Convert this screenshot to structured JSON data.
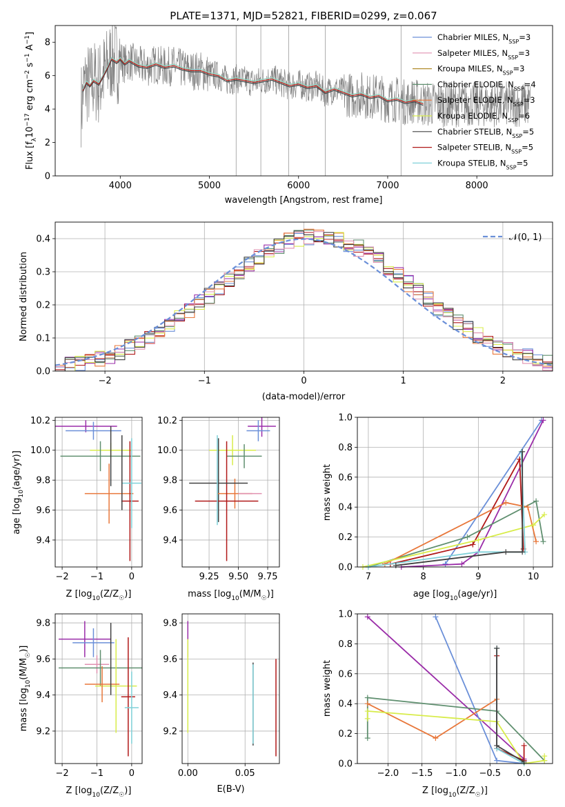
{
  "colors": {
    "Chabrier MILES": "#6a8fd8",
    "Salpeter MILES": "#e090b0",
    "Kroupa MILES": "#b08a2a",
    "Chabrier ELODIE": "#5f8f6f",
    "Salpeter ELODIE": "#e8773a",
    "Kroupa ELODIE": "#d8ec4a",
    "Chabrier STELIB": "#404040",
    "Salpeter STELIB": "#b01818",
    "Kroupa STELIB": "#7fd0d8",
    "Kroupa MILES alt": "#9a2ca8",
    "data": "#808080",
    "normal": "#6a8fd8"
  },
  "chart_data": [
    {
      "id": "spectrum",
      "type": "line",
      "title": "PLATE=1371, MJD=52821, FIBERID=0299, z=0.067",
      "xlabel": "wavelength [Angstrom, rest frame]",
      "ylabel_parts": [
        "Flux [f",
        "λ",
        "10",
        "−17",
        " erg cm",
        "−2",
        " s",
        "−1",
        " A",
        "−1",
        "]"
      ],
      "xlim": [
        3270,
        8850
      ],
      "ylim": [
        0,
        9
      ],
      "xticks": [
        "4000",
        "5000",
        "6000",
        "7000",
        "8000"
      ],
      "yticks": [
        "0",
        "2",
        "4",
        "6",
        "8"
      ],
      "legend": [
        {
          "base": "Chabrier MILES, N",
          "sub": "SSP",
          "tail": "=3"
        },
        {
          "base": "Salpeter MILES, N",
          "sub": "SSP",
          "tail": "=3"
        },
        {
          "base": "Kroupa MILES, N",
          "sub": "SSP",
          "tail": "=3"
        },
        {
          "base": "Chabrier ELODIE, N",
          "sub": "SSP",
          "tail": "=4"
        },
        {
          "base": "Salpeter ELODIE, N",
          "sub": "SSP",
          "tail": "=3"
        },
        {
          "base": "Kroupa ELODIE, N",
          "sub": "SSP",
          "tail": "=6"
        },
        {
          "base": "Chabrier STELIB, N",
          "sub": "SSP",
          "tail": "=5"
        },
        {
          "base": "Salpeter STELIB, N",
          "sub": "SSP",
          "tail": "=5"
        },
        {
          "base": "Kroupa STELIB, N",
          "sub": "SSP",
          "tail": "=5"
        }
      ],
      "model_curve": {
        "x": [
          3580,
          3620,
          3660,
          3700,
          3760,
          3800,
          3860,
          3900,
          3960,
          4000,
          4050,
          4100,
          4200,
          4300,
          4400,
          4500,
          4600,
          4700,
          4800,
          4900,
          5000,
          5100,
          5200,
          5300,
          5400,
          5500,
          5600,
          5700,
          5800,
          5900,
          6000,
          6100,
          6200,
          6300,
          6400,
          6500,
          6600,
          6700,
          6800,
          6900,
          7000,
          7100,
          7200,
          7300,
          7400
        ],
        "y": [
          5.1,
          5.6,
          5.4,
          5.7,
          5.5,
          5.9,
          6.5,
          7.0,
          6.8,
          7.0,
          6.7,
          6.9,
          6.6,
          6.5,
          6.7,
          6.5,
          6.6,
          6.4,
          6.3,
          6.3,
          6.1,
          6.0,
          5.7,
          5.8,
          5.7,
          5.6,
          5.7,
          5.8,
          5.6,
          5.4,
          5.5,
          5.3,
          5.4,
          5.0,
          5.2,
          5.0,
          4.8,
          4.9,
          4.7,
          4.8,
          4.5,
          4.6,
          4.4,
          4.5,
          4.3
        ]
      }
    },
    {
      "id": "residuals",
      "type": "histogram",
      "xlabel": "(data-model)/error",
      "ylabel": "Normed distribution",
      "xlim": [
        -2.5,
        2.5
      ],
      "ylim": [
        0,
        0.45
      ],
      "xticks": [
        "−2",
        "−1",
        "0",
        "1",
        "2"
      ],
      "yticks": [
        "0.0",
        "0.1",
        "0.2",
        "0.3",
        "0.4"
      ],
      "legend": "𝒩(0, 1)",
      "bin_width": 0.1
    },
    {
      "id": "age_vs_Z",
      "type": "errorbar",
      "ylabel": "age  [log10(age/yr)]",
      "ylabel_parts": [
        "age  [log",
        "10",
        "(age/yr)]"
      ],
      "xlabel_parts": [
        "Z [log",
        "10",
        "(Z/Z",
        "☉",
        ")]"
      ],
      "xlim": [
        -2.2,
        0.3
      ],
      "ylim": [
        9.22,
        10.22
      ],
      "xticks": [
        "−2",
        "−1",
        "0"
      ],
      "yticks": [
        "9.4",
        "9.6",
        "9.8",
        "10.0",
        "10.2"
      ],
      "points": [
        {
          "m": "Kroupa MILES alt",
          "x": -1.32,
          "xe": 0.9,
          "y": 10.16,
          "ye": 0.04
        },
        {
          "m": "Chabrier MILES",
          "x": -1.1,
          "xe": 0.8,
          "y": 10.13,
          "ye": 0.06
        },
        {
          "m": "Kroupa ELODIE",
          "x": -0.6,
          "xe": 0.6,
          "y": 10.0,
          "ye": 0.05
        },
        {
          "m": "Chabrier ELODIE",
          "x": -0.9,
          "xe": 1.15,
          "y": 9.96,
          "ye": 0.1
        },
        {
          "m": "Chabrier STELIB",
          "x": -0.6,
          "xe": 0.0,
          "y": 9.96,
          "ye": 0.2
        },
        {
          "m": "Salpeter ELODIE",
          "x": -0.65,
          "xe": 0.7,
          "y": 9.71,
          "ye": 0.2
        },
        {
          "m": "Salpeter STELIB",
          "x": -0.05,
          "xe": 0.25,
          "y": 9.66,
          "ye": 0.4
        },
        {
          "m": "Kroupa STELIB",
          "x": 0.0,
          "xe": 0.28,
          "y": 9.78,
          "ye": 0.3
        },
        {
          "m": "Chabrier STELIB",
          "x": -0.28,
          "xe": 0.0,
          "y": 9.85,
          "ye": 0.25
        }
      ]
    },
    {
      "id": "age_vs_mass",
      "type": "errorbar",
      "xlabel_parts": [
        "mass [log",
        "10",
        "(M/M",
        "☉",
        ")]"
      ],
      "xlim": [
        9.02,
        9.85
      ],
      "ylim": [
        9.22,
        10.22
      ],
      "xticks": [
        "9.25",
        "9.50",
        "9.75"
      ],
      "yticks": [
        "9.4",
        "9.6",
        "9.8",
        "10.0",
        "10.2"
      ],
      "points": [
        {
          "m": "Kroupa MILES alt",
          "x": 9.7,
          "xe": 0.12,
          "y": 10.16,
          "ye": 0.07
        },
        {
          "m": "Chabrier MILES",
          "x": 9.67,
          "xe": 0.1,
          "y": 10.13,
          "ye": 0.07
        },
        {
          "m": "Kroupa ELODIE",
          "x": 9.45,
          "xe": 0.2,
          "y": 10.0,
          "ye": 0.1
        },
        {
          "m": "Chabrier ELODIE",
          "x": 9.55,
          "xe": 0.15,
          "y": 9.96,
          "ye": 0.08
        },
        {
          "m": "Chabrier STELIB",
          "x": 9.33,
          "xe": 0.0,
          "y": 9.8,
          "ye": 0.28
        },
        {
          "m": "Salpeter ELODIE",
          "x": 9.47,
          "xe": 0.15,
          "y": 9.71,
          "ye": 0.1
        },
        {
          "m": "Salpeter STELIB",
          "x": 9.4,
          "xe": 0.27,
          "y": 9.66,
          "ye": 0.4
        },
        {
          "m": "Chabrier STELIB",
          "x": 9.33,
          "xe": 0.25,
          "y": 9.78,
          "ye": 0.0
        },
        {
          "m": "Kroupa STELIB",
          "x": 9.32,
          "xe": 0.0,
          "y": 9.8,
          "ye": 0.3
        },
        {
          "m": "Salpeter MILES",
          "x": 9.6,
          "xe": 0.1,
          "y": 9.71,
          "ye": 0.0
        }
      ]
    },
    {
      "id": "weight_vs_age",
      "type": "line",
      "ylabel": "mass weight",
      "xlabel_parts": [
        "age  [log",
        "10",
        "(age/yr)]"
      ],
      "xlim": [
        6.8,
        10.35
      ],
      "ylim": [
        0,
        1
      ],
      "xticks": [
        "7",
        "8",
        "9",
        "10"
      ],
      "yticks": [
        "0.0",
        "0.2",
        "0.4",
        "0.6",
        "0.8",
        "1.0"
      ],
      "series": [
        {
          "m": "Chabrier MILES",
          "x": [
            8.4,
            10.15
          ],
          "y": [
            0.02,
            0.98
          ]
        },
        {
          "m": "Kroupa MILES alt",
          "x": [
            7.6,
            8.7,
            9.0,
            10.18
          ],
          "y": [
            0.0,
            0.02,
            0.1,
            0.98
          ]
        },
        {
          "m": "Salpeter STELIB",
          "x": [
            7.4,
            8.9,
            9.75,
            9.82
          ],
          "y": [
            0.02,
            0.15,
            0.72,
            0.12
          ]
        },
        {
          "m": "Chabrier ELODIE",
          "x": [
            7.0,
            8.8,
            10.05,
            10.18
          ],
          "y": [
            0.0,
            0.2,
            0.44,
            0.17
          ]
        },
        {
          "m": "Salpeter ELODIE",
          "x": [
            7.3,
            9.5,
            9.9,
            10.05
          ],
          "y": [
            0.02,
            0.43,
            0.4,
            0.17
          ]
        },
        {
          "m": "Kroupa ELODIE",
          "x": [
            6.9,
            9.0,
            10.0,
            10.2
          ],
          "y": [
            0.0,
            0.18,
            0.28,
            0.35
          ]
        },
        {
          "m": "Kroupa STELIB",
          "x": [
            7.0,
            9.0,
            9.85,
            9.78
          ],
          "y": [
            0.0,
            0.1,
            0.1,
            0.77
          ]
        },
        {
          "m": "Chabrier STELIB",
          "x": [
            7.5,
            9.5,
            9.8,
            9.8
          ],
          "y": [
            0.01,
            0.1,
            0.1,
            0.77
          ]
        }
      ]
    },
    {
      "id": "mass_vs_Z",
      "type": "errorbar",
      "ylabel_parts": [
        "mass [log",
        "10",
        "(M/M",
        "☉",
        ")]"
      ],
      "xlabel_parts": [
        "Z [log",
        "10",
        "(Z/Z",
        "☉",
        ")]"
      ],
      "xlim": [
        -2.2,
        0.3
      ],
      "ylim": [
        9.02,
        9.85
      ],
      "xticks": [
        "−2",
        "−1",
        "0"
      ],
      "yticks": [
        "9.2",
        "9.4",
        "9.6",
        "9.8"
      ],
      "points": [
        {
          "m": "Kroupa MILES alt",
          "x": -1.35,
          "xe": 0.75,
          "y": 9.71,
          "ye": 0.1
        },
        {
          "m": "Chabrier MILES",
          "x": -1.1,
          "xe": 0.6,
          "y": 9.69,
          "ye": 0.08
        },
        {
          "m": "Salpeter MILES",
          "x": -1.0,
          "xe": 0.35,
          "y": 9.57,
          "ye": 0.05
        },
        {
          "m": "Chabrier ELODIE",
          "x": -0.9,
          "xe": 1.2,
          "y": 9.55,
          "ye": 0.1
        },
        {
          "m": "Kroupa ELODIE",
          "x": -0.45,
          "xe": 0.6,
          "y": 9.45,
          "ye": 0.26
        },
        {
          "m": "Salpeter ELODIE",
          "x": -0.85,
          "xe": 0.5,
          "y": 9.46,
          "ye": 0.1
        },
        {
          "m": "Salpeter STELIB",
          "x": -0.1,
          "xe": 0.2,
          "y": 9.39,
          "ye": 0.33
        },
        {
          "m": "Kroupa STELIB",
          "x": 0.0,
          "xe": 0.2,
          "y": 9.33,
          "ye": 0.2
        },
        {
          "m": "Chabrier STELIB",
          "x": -0.6,
          "xe": 0.0,
          "y": 9.6,
          "ye": 0.2
        }
      ]
    },
    {
      "id": "mass_vs_ebv",
      "type": "errorbar",
      "xlabel": "E(B-V)",
      "xlim": [
        -0.005,
        0.08
      ],
      "ylim": [
        9.02,
        9.85
      ],
      "xticks": [
        "0.00",
        "0.05"
      ],
      "yticks": [
        "9.2",
        "9.4",
        "9.6",
        "9.8"
      ],
      "points": [
        {
          "m": "Kroupa MILES alt",
          "x": 0.0,
          "xe": 0,
          "y": 9.71,
          "ye": 0.1
        },
        {
          "m": "Kroupa ELODIE",
          "x": 0.0,
          "xe": 0,
          "y": 9.45,
          "ye": 0.26
        },
        {
          "m": "Salpeter STELIB",
          "x": 0.077,
          "xe": 0,
          "y": 9.33,
          "ye": 0.27
        },
        {
          "m": "Chabrier STELIB",
          "x": 0.057,
          "xe": 0,
          "y": 9.35,
          "ye": 0.23
        },
        {
          "m": "Kroupa STELIB",
          "x": 0.057,
          "xe": 0,
          "y": 9.35,
          "ye": 0.22
        }
      ]
    },
    {
      "id": "weight_vs_Z",
      "type": "line",
      "ylabel": "mass weight",
      "xlabel_parts": [
        "Z [log",
        "10",
        "(Z/Z",
        "☉",
        ")]"
      ],
      "xlim": [
        -2.45,
        0.42
      ],
      "ylim": [
        0,
        1
      ],
      "xticks": [
        "−2.0",
        "−1.5",
        "−1.0",
        "−0.5",
        "0.0"
      ],
      "yticks": [
        "0.0",
        "0.2",
        "0.4",
        "0.6",
        "0.8",
        "1.0"
      ],
      "series": [
        {
          "m": "Kroupa MILES alt",
          "x": [
            -2.3,
            0.0,
            0.0
          ],
          "y": [
            0.98,
            0.03,
            0.02
          ]
        },
        {
          "m": "Chabrier MILES",
          "x": [
            -1.3,
            -0.4,
            0.0
          ],
          "y": [
            0.98,
            0.02,
            0.0
          ]
        },
        {
          "m": "Chabrier ELODIE",
          "x": [
            -2.3,
            -2.3,
            -0.4,
            0.3
          ],
          "y": [
            0.17,
            0.44,
            0.35,
            0.02
          ]
        },
        {
          "m": "Salpeter ELODIE",
          "x": [
            -2.3,
            -1.3,
            -0.4
          ],
          "y": [
            0.4,
            0.17,
            0.43
          ]
        },
        {
          "m": "Kroupa ELODIE",
          "x": [
            -2.3,
            -2.3,
            -0.4,
            0.0,
            0.3,
            0.3
          ],
          "y": [
            0.3,
            0.35,
            0.28,
            0.0,
            0.02,
            0.05
          ]
        },
        {
          "m": "Salpeter STELIB",
          "x": [
            -0.4,
            -0.4,
            0.0,
            0.0
          ],
          "y": [
            0.72,
            0.1,
            0.02,
            0.12
          ]
        },
        {
          "m": "Kroupa STELIB",
          "x": [
            -0.4,
            -0.4,
            0.0
          ],
          "y": [
            0.77,
            0.1,
            0.0
          ]
        },
        {
          "m": "Chabrier STELIB",
          "x": [
            -0.4,
            -0.4,
            0.0
          ],
          "y": [
            0.77,
            0.12,
            0.01
          ]
        }
      ]
    }
  ]
}
